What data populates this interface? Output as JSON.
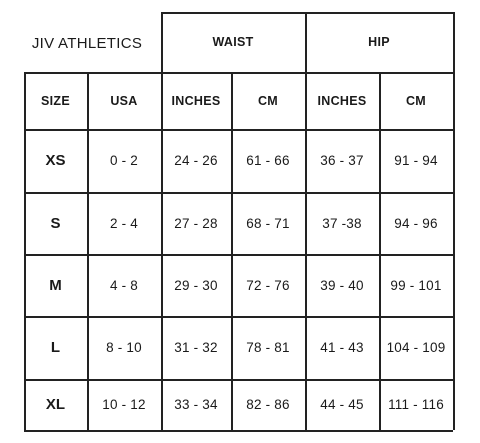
{
  "brand": "JIV ATHLETICS",
  "groups": {
    "waist": "WAIST",
    "hip": "HIP"
  },
  "columns": [
    "SIZE",
    "USA",
    "INCHES",
    "CM",
    "INCHES",
    "CM"
  ],
  "rows": [
    [
      "XS",
      "0 - 2",
      "24 - 26",
      "61 - 66",
      "36 - 37",
      "91 - 94"
    ],
    [
      "S",
      "2 - 4",
      "27 - 28",
      "68 - 71",
      "37 -38",
      "94 - 96"
    ],
    [
      "M",
      "4 - 8",
      "29 - 30",
      "72 - 76",
      "39 - 40",
      "99 - 101"
    ],
    [
      "L",
      "8 - 10",
      "31 - 32",
      "78 - 81",
      "41 - 43",
      "104 - 109"
    ],
    [
      "XL",
      "10 - 12",
      "33 - 34",
      "82 - 86",
      "44 - 45",
      "111 - 116"
    ]
  ]
}
